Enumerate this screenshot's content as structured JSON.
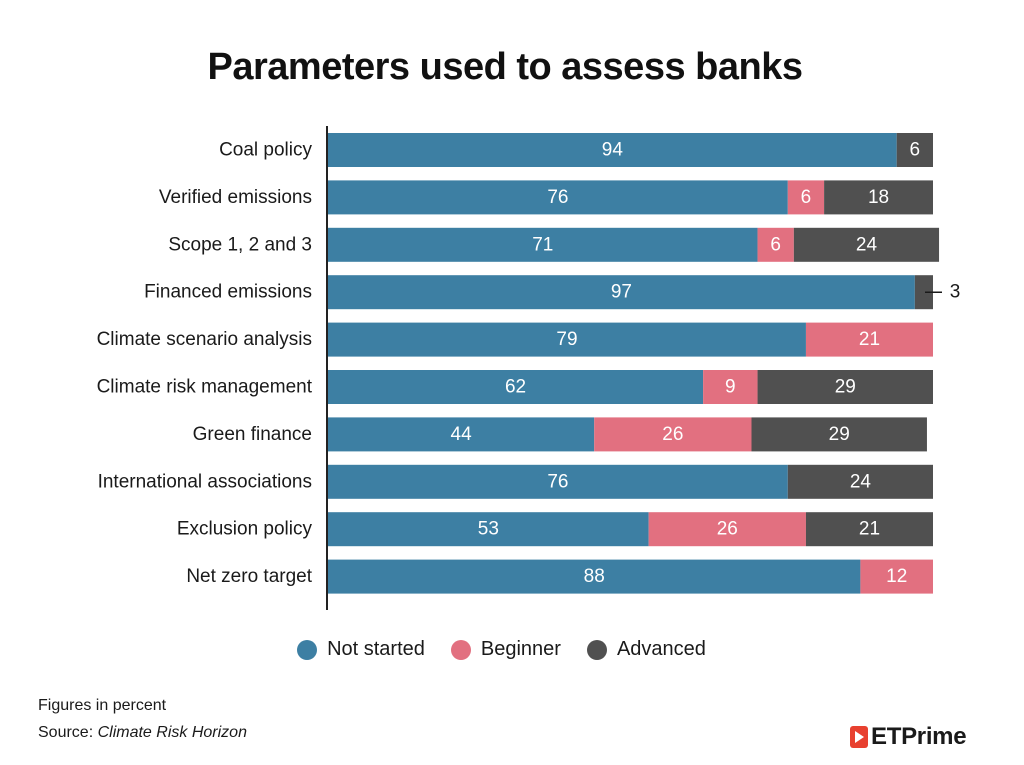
{
  "title": "Parameters used to assess banks",
  "chart_data": {
    "type": "bar",
    "orientation": "horizontal",
    "stacked": true,
    "categories": [
      "Coal policy",
      "Verified emissions",
      "Scope 1, 2 and 3",
      "Financed emissions",
      "Climate scenario analysis",
      "Climate risk management",
      "Green finance",
      "International associations",
      "Exclusion policy",
      "Net zero target"
    ],
    "series": [
      {
        "name": "Not started",
        "color": "#3d7fa3",
        "values": [
          94,
          76,
          71,
          97,
          79,
          62,
          44,
          76,
          53,
          88
        ]
      },
      {
        "name": "Beginner",
        "color": "#e27080",
        "values": [
          0,
          6,
          6,
          0,
          21,
          9,
          26,
          0,
          26,
          12
        ]
      },
      {
        "name": "Advanced",
        "color": "#505050",
        "values": [
          6,
          18,
          24,
          3,
          0,
          29,
          29,
          24,
          21,
          0
        ]
      }
    ],
    "xlim": [
      0,
      100
    ],
    "legend_position": "bottom",
    "annotations": [
      {
        "category": "Financed emissions",
        "series": "Advanced",
        "text": "3",
        "placement": "outside-right"
      }
    ]
  },
  "legend": [
    {
      "label": "Not started",
      "color": "#3d7fa3"
    },
    {
      "label": "Beginner",
      "color": "#e27080"
    },
    {
      "label": "Advanced",
      "color": "#505050"
    }
  ],
  "footer": {
    "note": "Figures in percent",
    "source_prefix": "Source: ",
    "source_name": "Climate Risk Horizon"
  },
  "logo": {
    "text": "ETPrime",
    "color": "#e8402f"
  }
}
